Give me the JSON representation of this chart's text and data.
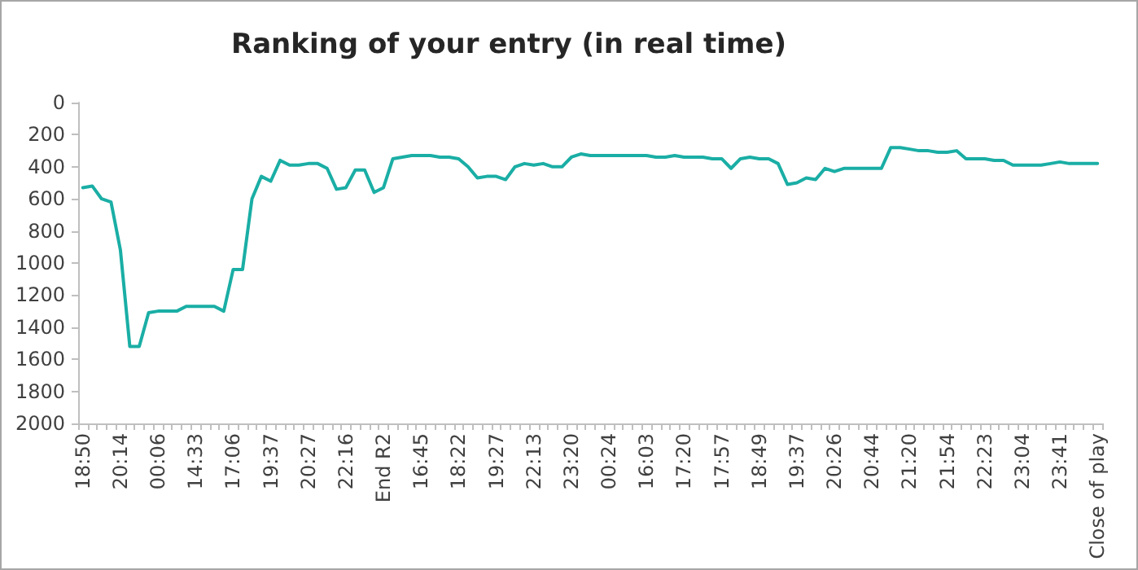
{
  "chart_data": {
    "type": "line",
    "title": "Ranking of your entry (in real time)",
    "categories": [
      "18:50",
      null,
      null,
      null,
      "20:14",
      null,
      null,
      null,
      "00:06",
      null,
      null,
      null,
      "14:33",
      null,
      null,
      null,
      "17:06",
      null,
      null,
      null,
      "19:37",
      null,
      null,
      null,
      "20:27",
      null,
      null,
      null,
      "22:16",
      null,
      null,
      null,
      "End R2",
      null,
      null,
      null,
      "16:45",
      null,
      null,
      null,
      "18:22",
      null,
      null,
      null,
      "19:27",
      null,
      null,
      null,
      "22:13",
      null,
      null,
      null,
      "23:20",
      null,
      null,
      null,
      "00:24",
      null,
      null,
      null,
      "16:03",
      null,
      null,
      null,
      "17:20",
      null,
      null,
      null,
      "17:57",
      null,
      null,
      null,
      "18:49",
      null,
      null,
      null,
      "19:37",
      null,
      null,
      null,
      "20:26",
      null,
      null,
      null,
      "20:44",
      null,
      null,
      null,
      "21:20",
      null,
      null,
      null,
      "21:54",
      null,
      null,
      null,
      "22:23",
      null,
      null,
      null,
      "23:04",
      null,
      null,
      null,
      "23:41",
      null,
      null,
      null,
      "Close of play"
    ],
    "series": [
      {
        "color": "#1aaea5",
        "values": [
          530,
          520,
          600,
          620,
          920,
          1520,
          1520,
          1310,
          1300,
          1300,
          1300,
          1270,
          1270,
          1270,
          1270,
          1300,
          1040,
          1040,
          600,
          460,
          490,
          360,
          390,
          390,
          380,
          380,
          410,
          540,
          530,
          420,
          420,
          560,
          530,
          350,
          340,
          330,
          330,
          330,
          340,
          340,
          350,
          400,
          470,
          460,
          460,
          480,
          400,
          380,
          390,
          380,
          400,
          400,
          340,
          320,
          330,
          330,
          330,
          330,
          330,
          330,
          330,
          340,
          340,
          330,
          340,
          340,
          340,
          350,
          350,
          410,
          350,
          340,
          350,
          350,
          380,
          510,
          500,
          470,
          480,
          410,
          430,
          410,
          410,
          410,
          410,
          410,
          280,
          280,
          290,
          300,
          300,
          310,
          310,
          300,
          350,
          350,
          350,
          360,
          360,
          390,
          390,
          390,
          390,
          380,
          370,
          380,
          380,
          380,
          380
        ]
      }
    ],
    "ylim": [
      2000,
      0
    ],
    "yticks": [
      0,
      200,
      400,
      600,
      800,
      1000,
      1200,
      1400,
      1600,
      1800,
      2000
    ],
    "grid": false,
    "marker": "none",
    "line_style": "solid"
  }
}
